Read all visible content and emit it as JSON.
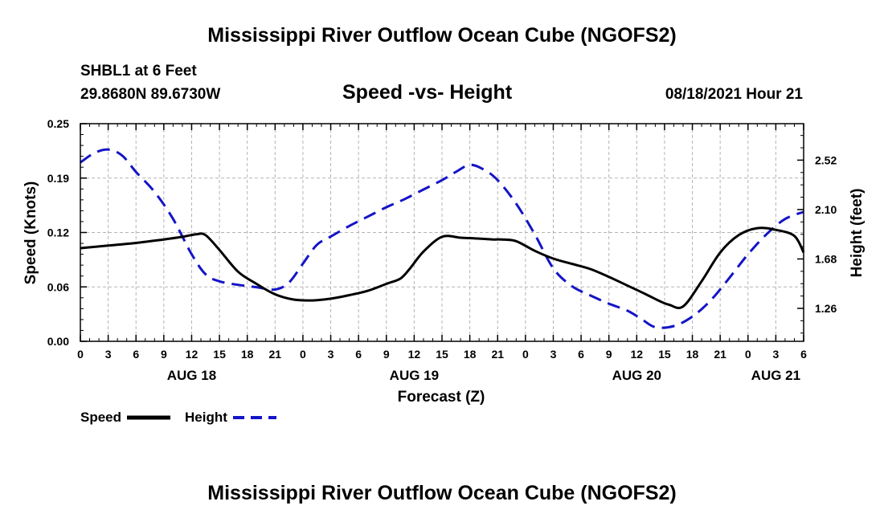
{
  "header": {
    "title": "Mississippi River Outflow Ocean Cube (NGOFS2)",
    "station": "SHBL1 at 6 Feet",
    "coords": "29.8680N  89.6730W",
    "subtitle": "Speed -vs- Height",
    "datetime": "08/18/2021 Hour 21"
  },
  "footer": {
    "title": "Mississippi River Outflow Ocean Cube (NGOFS2)"
  },
  "legend": {
    "speed_label": "Speed",
    "height_label": "Height"
  },
  "colors": {
    "speed": "#000000",
    "height": "#1414c8",
    "grid": "#b4b4b4"
  },
  "chart_data": {
    "type": "line",
    "title": "Speed -vs- Height",
    "xlabel": "Forecast (Z)",
    "ylabel": "Speed (Knots)",
    "y2label": "Height (feet)",
    "x_unit": "hours since 00Z Aug 18",
    "xlim": [
      0,
      78
    ],
    "ylim": [
      0,
      0.25
    ],
    "y2lim": [
      0.98,
      2.83
    ],
    "y_ticks": [
      0.0,
      0.06,
      0.12,
      0.19,
      0.25
    ],
    "y_tick_values": [
      0,
      0.0625,
      0.125,
      0.1875,
      0.25
    ],
    "y2_ticks": [
      "1.26",
      "1.68",
      "2.10",
      "2.52"
    ],
    "y2_tick_values": [
      1.26,
      1.68,
      2.1,
      2.52
    ],
    "x_ticks": [
      "0",
      "3",
      "6",
      "9",
      "12",
      "15",
      "18",
      "21",
      "0",
      "3",
      "6",
      "9",
      "12",
      "15",
      "18",
      "21",
      "0",
      "3",
      "6",
      "9",
      "12",
      "15",
      "18",
      "21",
      "0",
      "3",
      "6"
    ],
    "day_labels": [
      {
        "label": "AUG 18",
        "x": 12
      },
      {
        "label": "AUG 19",
        "x": 36
      },
      {
        "label": "AUG 20",
        "x": 60
      },
      {
        "label": "AUG 21",
        "x": 75
      }
    ],
    "series": [
      {
        "name": "Speed",
        "axis": "left",
        "x": [
          0,
          3,
          6,
          9,
          11,
          12.5,
          13.5,
          15,
          17,
          19,
          21,
          23,
          25,
          27,
          29,
          31,
          33,
          34.5,
          35.5,
          37,
          39,
          41,
          43,
          44.5,
          45.5,
          47,
          49,
          51,
          53,
          55,
          57,
          59,
          61,
          62.5,
          63.5,
          65,
          67,
          69,
          71,
          73,
          75,
          77,
          78
        ],
        "values": [
          0.107,
          0.11,
          0.113,
          0.117,
          0.12,
          0.123,
          0.122,
          0.105,
          0.08,
          0.066,
          0.054,
          0.048,
          0.047,
          0.049,
          0.053,
          0.058,
          0.066,
          0.072,
          0.083,
          0.103,
          0.12,
          0.119,
          0.118,
          0.117,
          0.117,
          0.115,
          0.104,
          0.095,
          0.089,
          0.083,
          0.074,
          0.064,
          0.054,
          0.046,
          0.042,
          0.04,
          0.069,
          0.102,
          0.122,
          0.13,
          0.128,
          0.121,
          0.102
        ]
      },
      {
        "name": "Height",
        "axis": "right",
        "x": [
          0,
          1.5,
          3,
          4.5,
          6,
          8,
          10,
          12,
          13.5,
          15,
          17,
          19,
          21,
          22.5,
          24,
          25.5,
          27,
          29,
          31,
          33,
          35,
          37,
          39,
          40.5,
          42,
          43.5,
          45,
          47,
          49,
          51,
          53,
          55,
          57,
          59,
          60.5,
          62,
          64,
          66,
          68,
          70,
          72,
          74,
          76,
          78
        ],
        "values": [
          2.5,
          2.58,
          2.61,
          2.56,
          2.42,
          2.25,
          2.02,
          1.72,
          1.55,
          1.49,
          1.46,
          1.44,
          1.42,
          1.48,
          1.64,
          1.8,
          1.87,
          1.96,
          2.04,
          2.12,
          2.19,
          2.27,
          2.35,
          2.42,
          2.48,
          2.44,
          2.35,
          2.15,
          1.89,
          1.6,
          1.45,
          1.37,
          1.3,
          1.24,
          1.17,
          1.1,
          1.11,
          1.19,
          1.33,
          1.52,
          1.72,
          1.89,
          2.02,
          2.08
        ]
      }
    ]
  }
}
